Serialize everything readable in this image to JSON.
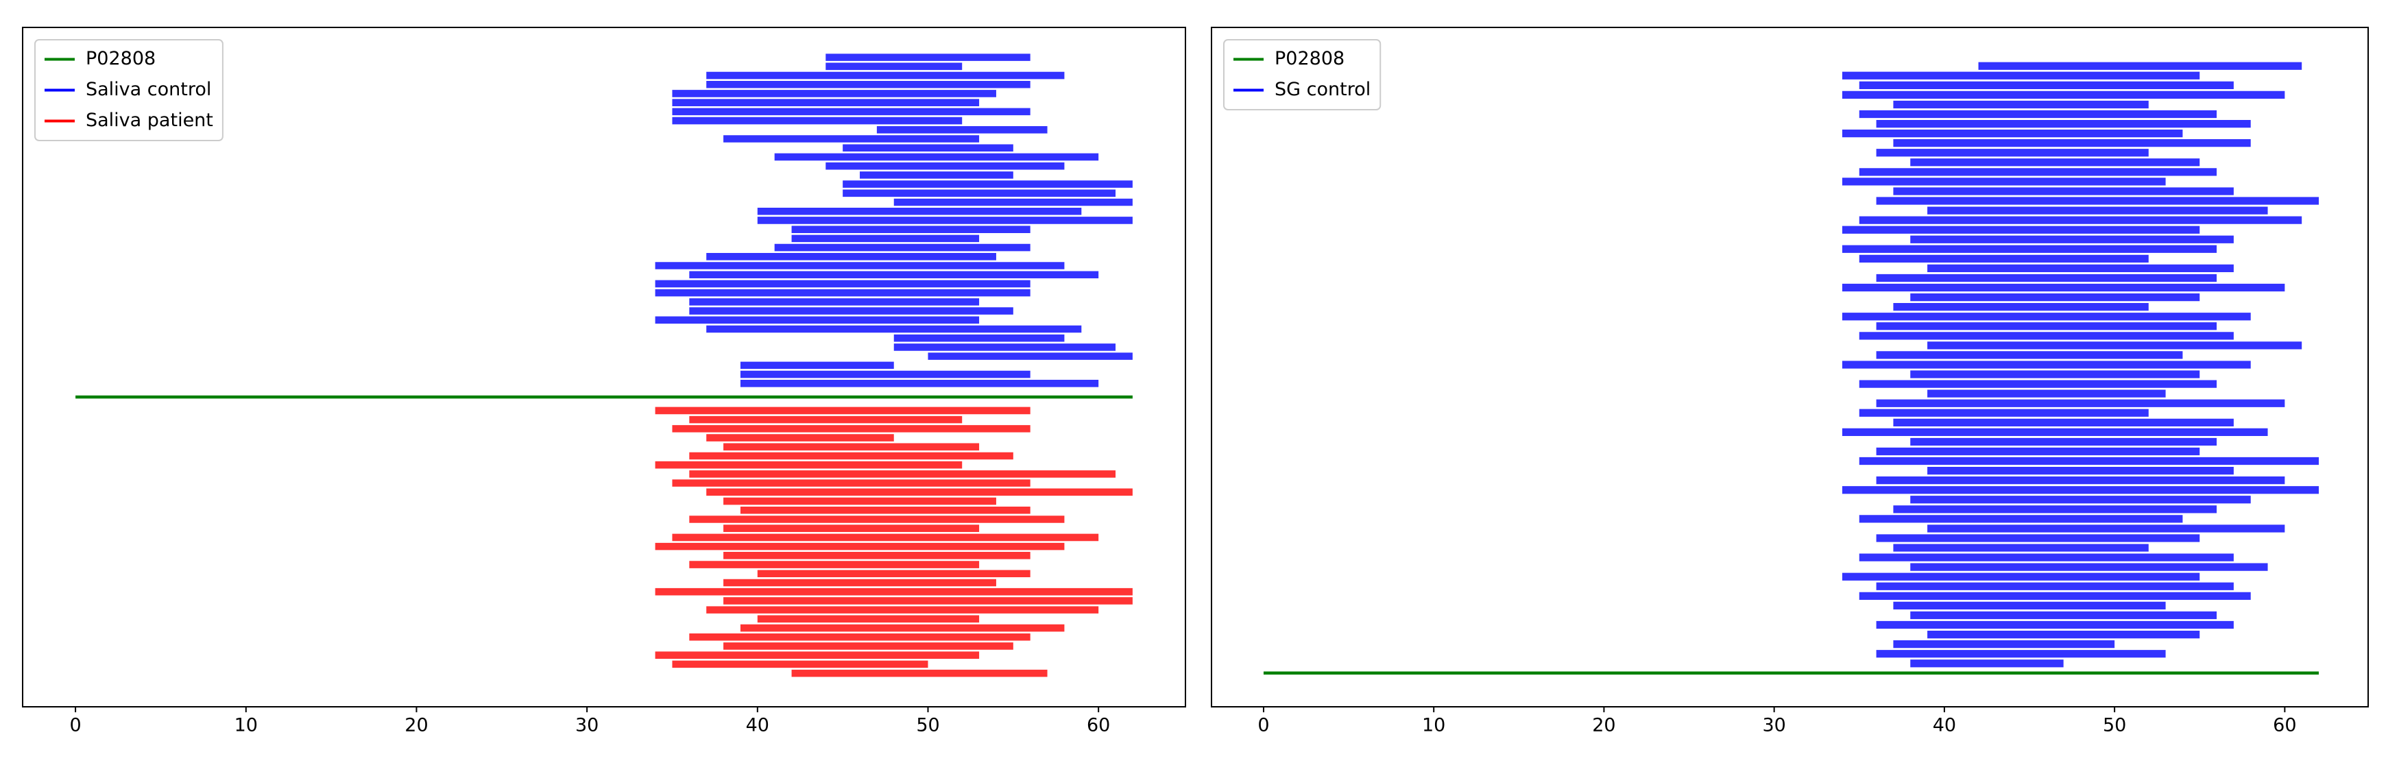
{
  "chart_data": [
    {
      "type": "segments",
      "legend": "upper left",
      "xlim": [
        -3.1,
        65.1
      ],
      "xticks": [
        0,
        10,
        20,
        30,
        40,
        50,
        60
      ],
      "ylim": [
        -2.7,
        72.3
      ],
      "series": [
        {
          "name": "P02808",
          "color": "#008000",
          "starts": [
            0
          ],
          "ends": [
            62
          ],
          "y": [
            31.5
          ]
        },
        {
          "name": "Saliva control",
          "color": "#0000ff",
          "starts": [
            44,
            44,
            37,
            37,
            35,
            35,
            35,
            35,
            47,
            38,
            45,
            41,
            44,
            46,
            45,
            45,
            48,
            40,
            40,
            42,
            42,
            41,
            37,
            34,
            36,
            34,
            34,
            36,
            36,
            34,
            37,
            48,
            48,
            50,
            39,
            39,
            39
          ],
          "ends": [
            56,
            52,
            58,
            56,
            54,
            53,
            56,
            52,
            57,
            53,
            55,
            60,
            58,
            55,
            62,
            61,
            62,
            59,
            62,
            56,
            53,
            56,
            54,
            58,
            60,
            56,
            56,
            53,
            55,
            53,
            59,
            58,
            61,
            62,
            48,
            56,
            60
          ],
          "y": [
            69,
            68,
            67,
            66,
            65,
            64,
            63,
            62,
            61,
            60,
            59,
            58,
            57,
            56,
            55,
            54,
            53,
            52,
            51,
            50,
            49,
            48,
            47,
            46,
            45,
            44,
            43,
            42,
            41,
            40,
            39,
            38,
            37,
            36,
            35,
            34,
            33
          ]
        },
        {
          "name": "Saliva patient",
          "color": "#ff0000",
          "starts": [
            34,
            36,
            35,
            37,
            38,
            36,
            34,
            36,
            35,
            37,
            38,
            39,
            36,
            38,
            35,
            34,
            38,
            36,
            40,
            38,
            34,
            38,
            37,
            40,
            39,
            36,
            38,
            34,
            35,
            42
          ],
          "ends": [
            56,
            52,
            56,
            48,
            53,
            55,
            52,
            61,
            56,
            62,
            54,
            56,
            58,
            53,
            60,
            58,
            56,
            53,
            56,
            54,
            62,
            62,
            60,
            53,
            58,
            56,
            55,
            53,
            50,
            57
          ],
          "y": [
            30,
            29,
            28,
            27,
            26,
            25,
            24,
            23,
            22,
            21,
            20,
            19,
            18,
            17,
            16,
            15,
            14,
            13,
            12,
            11,
            10,
            9,
            8,
            7,
            6,
            5,
            4,
            3,
            2,
            1
          ]
        }
      ]
    },
    {
      "type": "segments",
      "legend": "upper left",
      "xlim": [
        -3.06,
        64.9
      ],
      "xticks": [
        0,
        10,
        20,
        30,
        40,
        50,
        60
      ],
      "ylim": [
        -3.5,
        67
      ],
      "series": [
        {
          "name": "P02808",
          "color": "#008000",
          "starts": [
            0
          ],
          "ends": [
            62
          ],
          "y": [
            0
          ]
        },
        {
          "name": "SG control",
          "color": "#0000ff",
          "starts": [
            42,
            34,
            35,
            34,
            37,
            35,
            36,
            34,
            37,
            36,
            38,
            35,
            34,
            37,
            36,
            39,
            35,
            34,
            38,
            34,
            35,
            39,
            36,
            34,
            38,
            37,
            34,
            36,
            35,
            39,
            36,
            34,
            38,
            35,
            39,
            36,
            35,
            37,
            34,
            38,
            36,
            35,
            39,
            36,
            34,
            38,
            37,
            35,
            39,
            36,
            37,
            35,
            38,
            34,
            36,
            35,
            37,
            38,
            36,
            39,
            37,
            36,
            38
          ],
          "ends": [
            61,
            55,
            57,
            60,
            52,
            56,
            58,
            54,
            58,
            52,
            55,
            56,
            53,
            57,
            62,
            59,
            61,
            55,
            57,
            56,
            52,
            57,
            56,
            60,
            55,
            52,
            58,
            56,
            57,
            61,
            54,
            58,
            55,
            56,
            53,
            60,
            52,
            57,
            59,
            56,
            55,
            62,
            57,
            60,
            62,
            58,
            56,
            54,
            60,
            55,
            52,
            57,
            59,
            55,
            57,
            58,
            53,
            56,
            57,
            55,
            50,
            53,
            47
          ],
          "y": [
            63,
            62,
            61,
            60,
            59,
            58,
            57,
            56,
            55,
            54,
            53,
            52,
            51,
            50,
            49,
            48,
            47,
            46,
            45,
            44,
            43,
            42,
            41,
            40,
            39,
            38,
            37,
            36,
            35,
            34,
            33,
            32,
            31,
            30,
            29,
            28,
            27,
            26,
            25,
            24,
            23,
            22,
            21,
            20,
            19,
            18,
            17,
            16,
            15,
            14,
            13,
            12,
            11,
            10,
            9,
            8,
            7,
            6,
            5,
            4,
            3,
            2,
            1
          ]
        }
      ]
    }
  ]
}
